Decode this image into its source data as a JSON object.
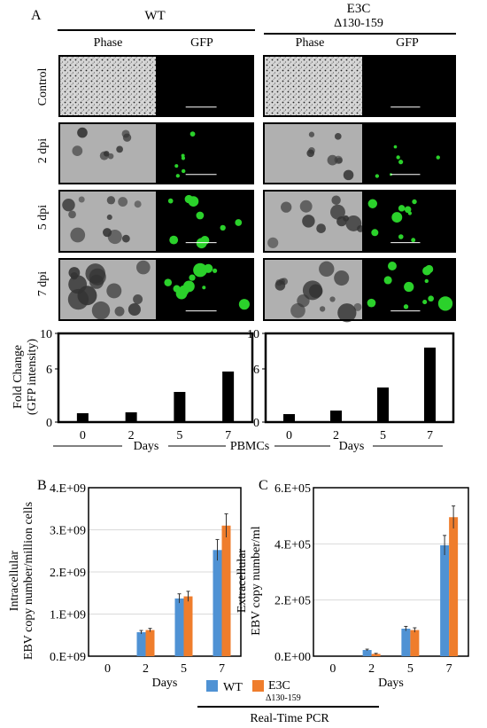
{
  "panel_letters": {
    "a": "A",
    "b": "B",
    "c": "C"
  },
  "groups": {
    "wt": "WT",
    "e3c_line1": "E3C",
    "e3c_line2": "Δ130-159"
  },
  "column_headers": {
    "phase": "Phase",
    "gfp": "GFP"
  },
  "row_labels": [
    "Control",
    "2 dpi",
    "5 dpi",
    "7 dpi"
  ],
  "micrographs": {
    "phase_color": "#b0b0b0",
    "gfp_background": "#000000",
    "gfp_color": "#2bd12b"
  },
  "panel_a_footer": {
    "days_left": "Days",
    "pbmcs": "PBMCs",
    "days_right": "Days"
  },
  "legend": {
    "wt": "WT",
    "e3c_line1": "E3C",
    "e3c_line2": "Δ130-159",
    "wt_color": "#4f92d4",
    "e3c_color": "#ef7d2c"
  },
  "footer_label": "Real-Time PCR",
  "chart_data": [
    {
      "id": "fold-wt",
      "type": "bar",
      "categories": [
        "0",
        "2",
        "5",
        "7"
      ],
      "values": [
        1.0,
        1.1,
        3.4,
        5.7
      ],
      "ylabel_line1": "Fold Change",
      "ylabel_line2": "(GFP intensity)",
      "yticks": [
        "0",
        "6",
        "10"
      ],
      "ylim": [
        0,
        10
      ],
      "grid": false,
      "color": "#000000"
    },
    {
      "id": "fold-e3c",
      "type": "bar",
      "categories": [
        "0",
        "2",
        "5",
        "7"
      ],
      "values": [
        0.9,
        1.3,
        3.9,
        8.4
      ],
      "yticks": [
        "0",
        "6",
        "10"
      ],
      "ylim": [
        0,
        10
      ],
      "grid": false,
      "color": "#000000"
    },
    {
      "id": "intracellular",
      "type": "bar",
      "categories": [
        "0",
        "2",
        "5",
        "7"
      ],
      "series": [
        {
          "name": "WT",
          "values": [
            0,
            570000000.0,
            1370000000.0,
            2520000000.0
          ],
          "errors": [
            0,
            40000000.0,
            110000000.0,
            250000000.0
          ]
        },
        {
          "name": "E3C Δ130-159",
          "values": [
            0,
            620000000.0,
            1420000000.0,
            3100000000.0
          ],
          "errors": [
            0,
            40000000.0,
            120000000.0,
            280000000.0
          ]
        }
      ],
      "ylabel_line1": "Intracellular",
      "ylabel_line2": "EBV copy number/million cells",
      "xlabel": "Days",
      "yticks": [
        "0.E+09",
        "1.E+09",
        "2.E+09",
        "3.E+09",
        "4.E+09"
      ],
      "ylim": [
        0,
        4000000000.0
      ],
      "grid": true
    },
    {
      "id": "extracellular",
      "type": "bar",
      "categories": [
        "0",
        "2",
        "5",
        "7"
      ],
      "series": [
        {
          "name": "WT",
          "values": [
            0,
            22000.0,
            98000.0,
            395000.0
          ],
          "errors": [
            0,
            3000.0,
            8000.0,
            35000.0
          ]
        },
        {
          "name": "E3C Δ130-159",
          "values": [
            0,
            8000.0,
            93000.0,
            495000.0
          ],
          "errors": [
            0,
            2000.0,
            8000.0,
            40000.0
          ]
        }
      ],
      "ylabel_line1": "Extracellular",
      "ylabel_line2": "EBV copy number/ml",
      "xlabel": "Days",
      "yticks": [
        "0.E+00",
        "2.E+05",
        "4.E+05",
        "6.E+05"
      ],
      "ylim": [
        0,
        600000.0
      ],
      "grid": true
    }
  ]
}
